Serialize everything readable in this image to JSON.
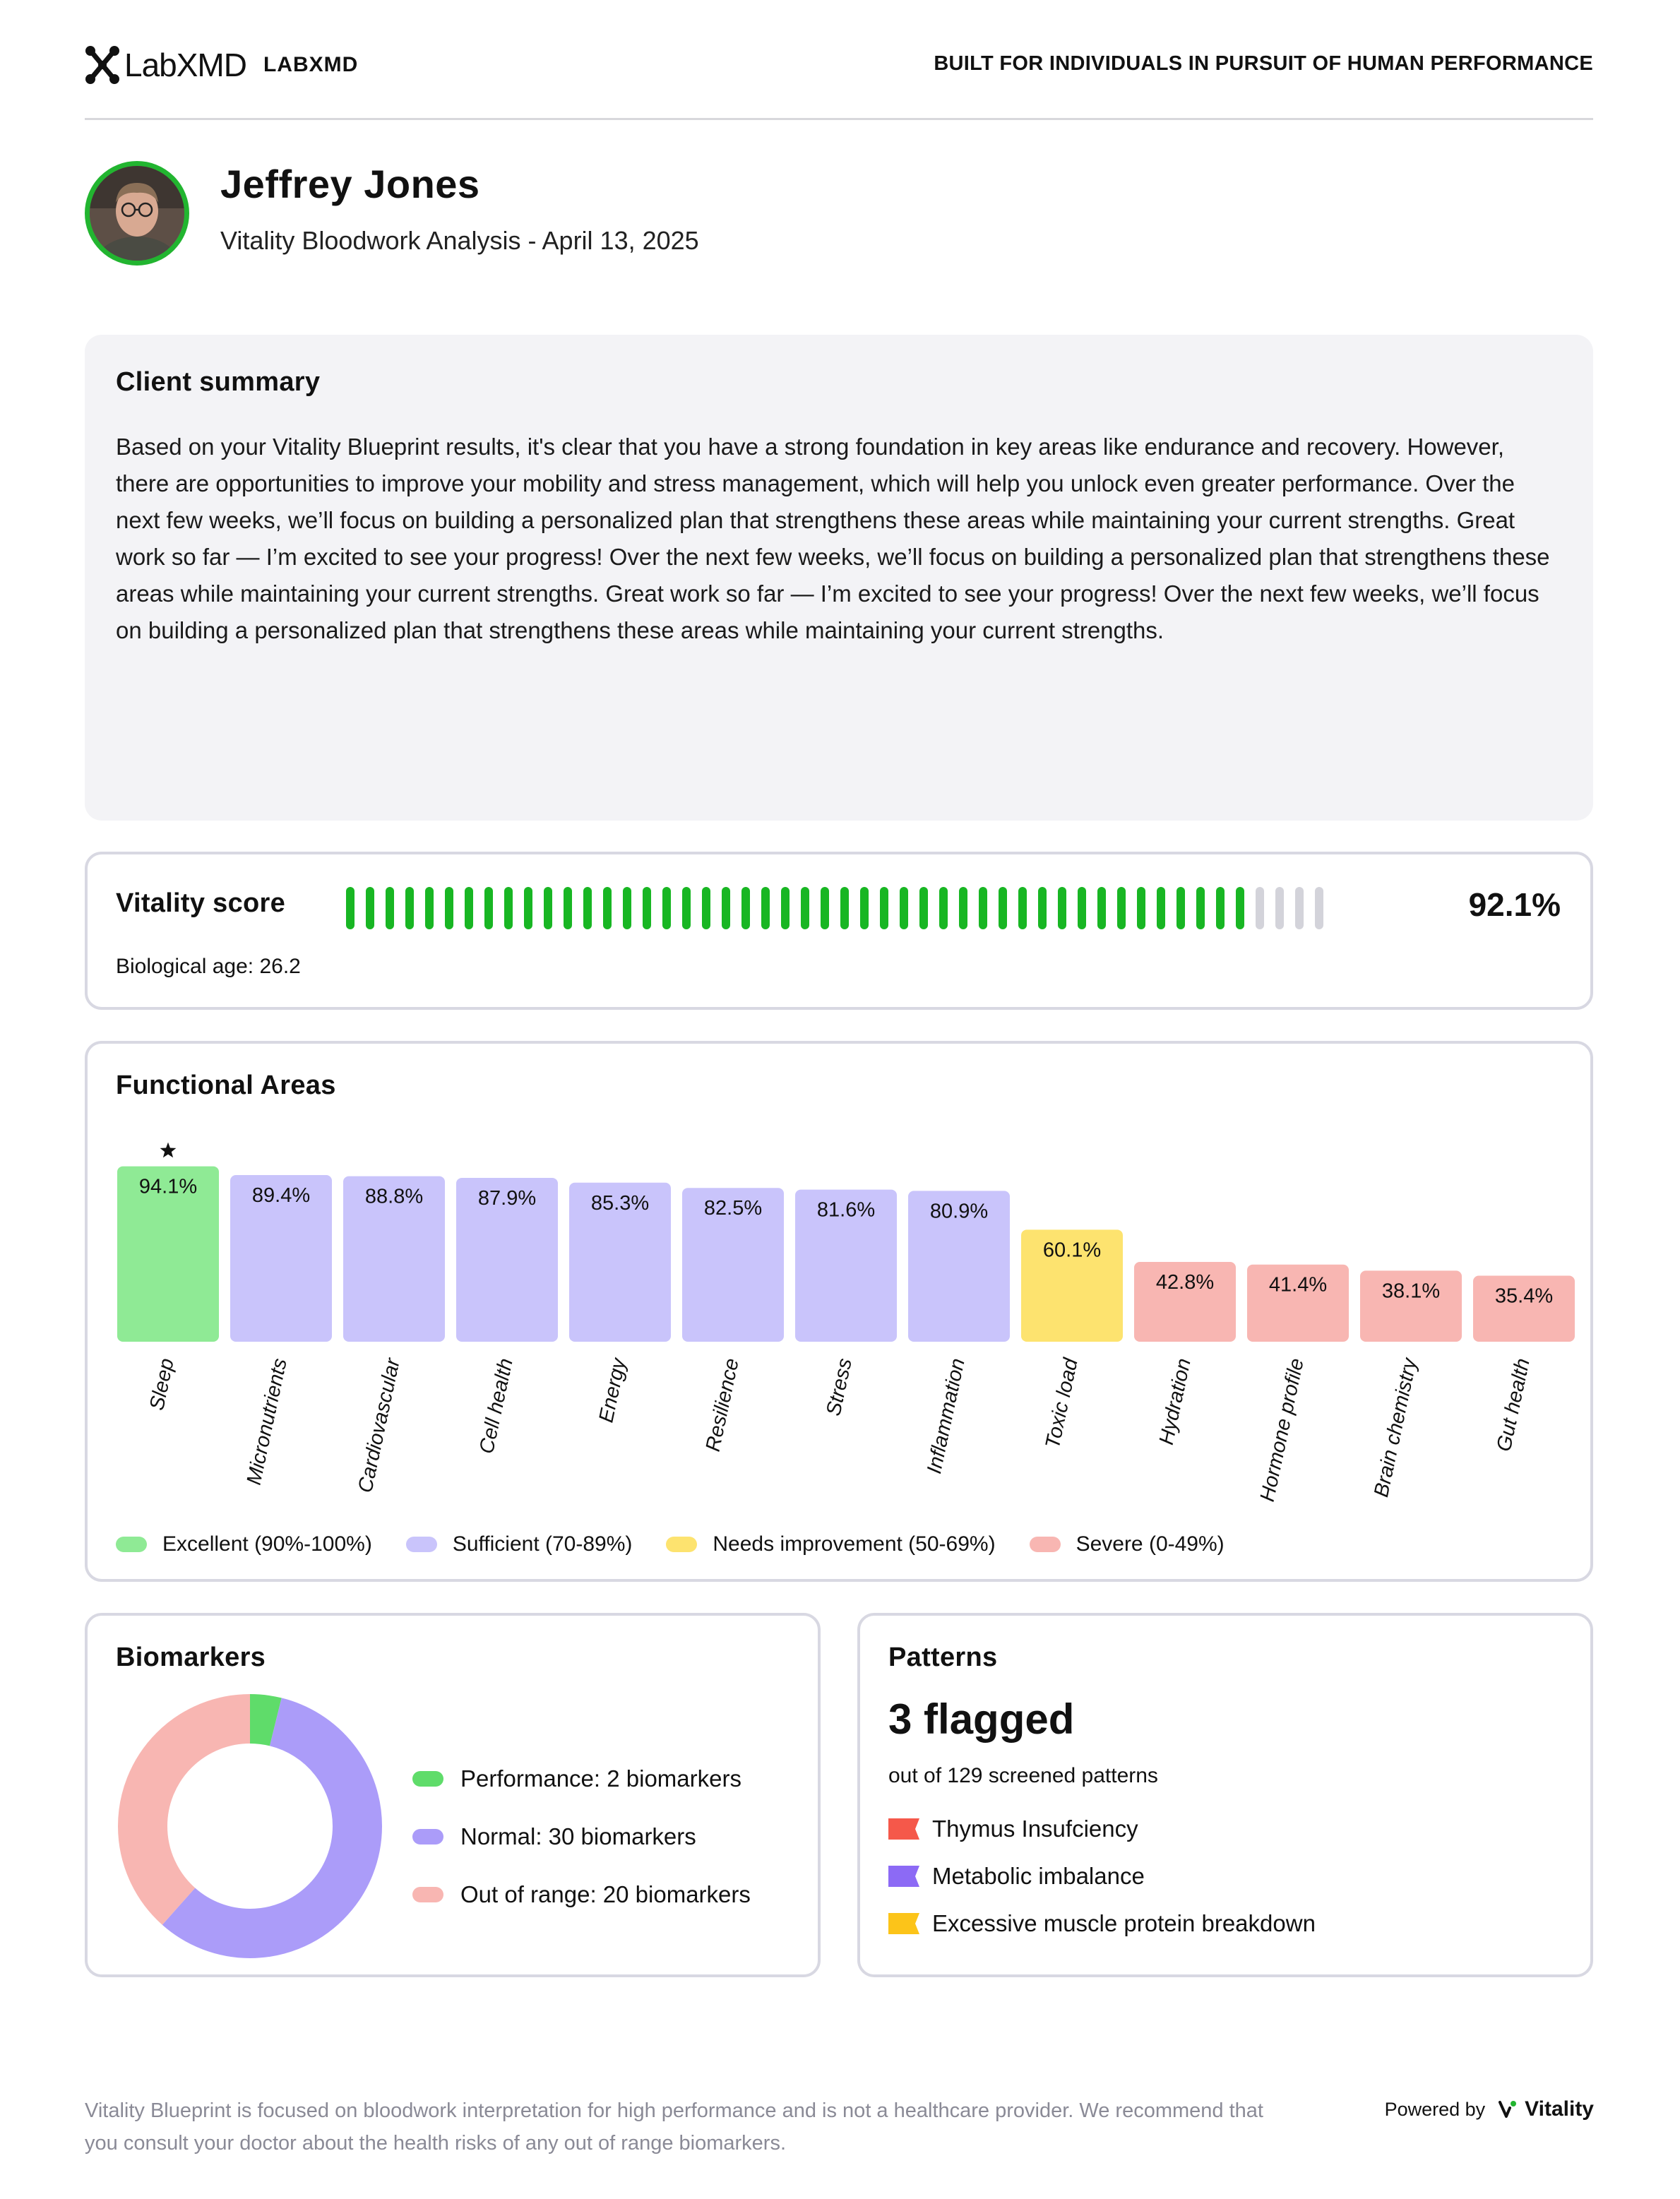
{
  "header": {
    "logo_text": "LabXMD",
    "logo_sub": "LABXMD",
    "tagline": "BUILT FOR INDIVIDUALS IN PURSUIT OF HUMAN PERFORMANCE"
  },
  "profile": {
    "name": "Jeffrey Jones",
    "subtitle": "Vitality Bloodwork Analysis - April 13, 2025"
  },
  "summary": {
    "title": "Client summary",
    "text": "Based on your Vitality Blueprint results, it's clear that you have a strong foundation in key areas like endurance and recovery. However, there are opportunities to improve your mobility and stress management, which will help you unlock even greater performance. Over the next few weeks, we’ll focus on building a personalized plan that strengthens these areas while maintaining your current strengths. Great work so far — I’m excited to see your progress! Over the next few weeks, we’ll focus on building a personalized plan that strengthens these areas while maintaining your current strengths. Great work so far — I’m excited to see your progress! Over the next few weeks, we’ll focus on building a personalized plan that strengthens these areas while maintaining your current strengths."
  },
  "vitality": {
    "title": "Vitality score",
    "score_label": "92.1%",
    "score": 92.1,
    "ticks_total": 50,
    "ticks_filled": 46,
    "bio_age_text": "Biological age: 26.2",
    "fill_color": "#18b623",
    "empty_color": "#d3d3da"
  },
  "functional": {
    "title": "Functional Areas",
    "legend": [
      {
        "label": "Excellent (90%-100%)",
        "color": "#8fea95"
      },
      {
        "label": "Sufficient (70-89%)",
        "color": "#c9c4fb"
      },
      {
        "label": "Needs improvement (50-69%)",
        "color": "#fde36f"
      },
      {
        "label": "Severe (0-49%)",
        "color": "#f8b6b2"
      }
    ]
  },
  "chart_data": [
    {
      "type": "bar",
      "categories": [
        "Sleep",
        "Micronutrients",
        "Cardiovascular",
        "Cell health",
        "Energy",
        "Resilience",
        "Stress",
        "Inflammation",
        "Toxic load",
        "Hydration",
        "Hormone profile",
        "Brain chemistry",
        "Gut health"
      ],
      "values": [
        94.1,
        89.4,
        88.8,
        87.9,
        85.3,
        82.5,
        81.6,
        80.9,
        60.1,
        42.8,
        41.4,
        38.1,
        35.4
      ],
      "labels": [
        "94.1%",
        "89.4%",
        "88.8%",
        "87.9%",
        "85.3%",
        "82.5%",
        "81.6%",
        "80.9%",
        "60.1%",
        "42.8%",
        "41.4%",
        "38.1%",
        "35.4%"
      ],
      "colors": [
        "#8fea95",
        "#c9c4fb",
        "#c9c4fb",
        "#c9c4fb",
        "#c9c4fb",
        "#c9c4fb",
        "#c9c4fb",
        "#c9c4fb",
        "#fde36f",
        "#f8b6b2",
        "#f8b6b2",
        "#f8b6b2",
        "#f8b6b2"
      ],
      "starred": "Sleep",
      "ylim": [
        0,
        100
      ]
    },
    {
      "type": "pie",
      "categories": [
        "Performance",
        "Normal",
        "Out of range"
      ],
      "values": [
        2,
        30,
        20
      ],
      "colors": [
        "#5fdc6a",
        "#ab9cf9",
        "#f8b6b2"
      ],
      "donut": true
    }
  ],
  "biomarkers": {
    "title": "Biomarkers",
    "items": [
      {
        "label": "Performance: 2 biomarkers",
        "color": "#5fdc6a"
      },
      {
        "label": "Normal: 30 biomarkers",
        "color": "#ab9cf9"
      },
      {
        "label": "Out of range: 20 biomarkers",
        "color": "#f8b6b2"
      }
    ]
  },
  "patterns": {
    "title": "Patterns",
    "flagged": "3 flagged",
    "sub": "out of 129 screened patterns",
    "items": [
      {
        "label": "Thymus Insufciency",
        "color": "#f5584a"
      },
      {
        "label": "Metabolic imbalance",
        "color": "#8c6af5"
      },
      {
        "label": "Excessive muscle protein breakdown",
        "color": "#fcc419"
      }
    ]
  },
  "footer": {
    "note": "Vitality Blueprint is focused on bloodwork interpretation for high performance and is not a healthcare provider. We recommend that you consult your doctor about the health risks of any out of range biomarkers.",
    "powered_by": "Powered by",
    "brand": "Vitality"
  }
}
